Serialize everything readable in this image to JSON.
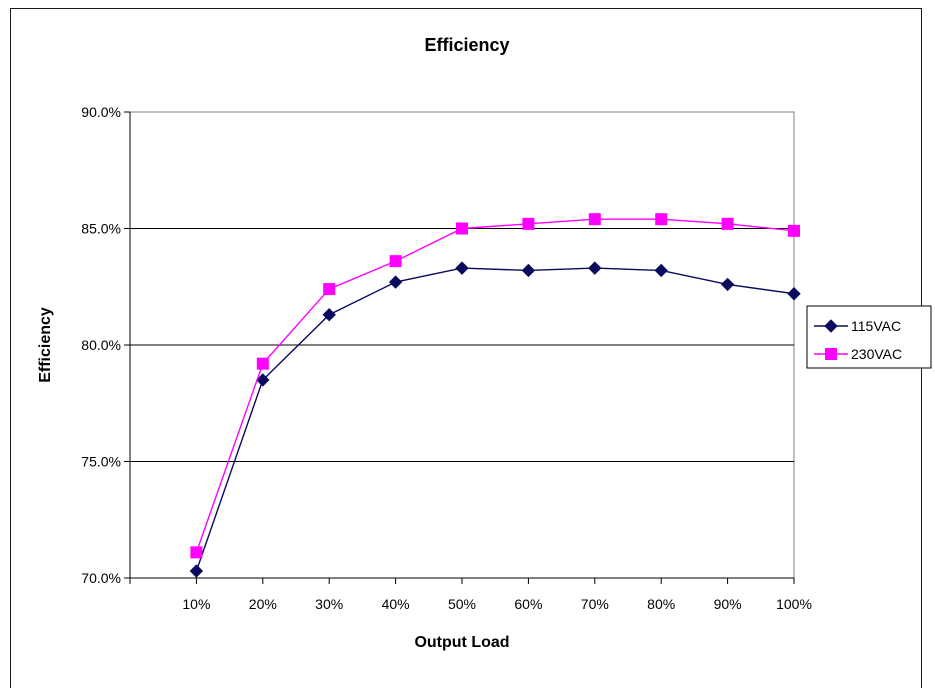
{
  "chart_data": {
    "type": "line",
    "title": "Efficiency",
    "xlabel": "Output Load",
    "ylabel": "Efficiency",
    "categories": [
      "10%",
      "20%",
      "30%",
      "40%",
      "50%",
      "60%",
      "70%",
      "80%",
      "90%",
      "100%"
    ],
    "yticks": [
      "70.0%",
      "75.0%",
      "80.0%",
      "85.0%",
      "90.0%"
    ],
    "ylim": [
      70,
      90
    ],
    "grid": true,
    "legend_position": "right",
    "series": [
      {
        "name": "115VAC",
        "color": "#0b0b5e",
        "marker": "diamond",
        "values": [
          70.3,
          78.5,
          81.3,
          82.7,
          83.3,
          83.2,
          83.3,
          83.2,
          82.6,
          82.2
        ]
      },
      {
        "name": "230VAC",
        "color": "#ff00ff",
        "marker": "square",
        "values": [
          71.1,
          79.2,
          82.4,
          83.6,
          85.0,
          85.2,
          85.4,
          85.4,
          85.2,
          84.9
        ]
      }
    ]
  }
}
